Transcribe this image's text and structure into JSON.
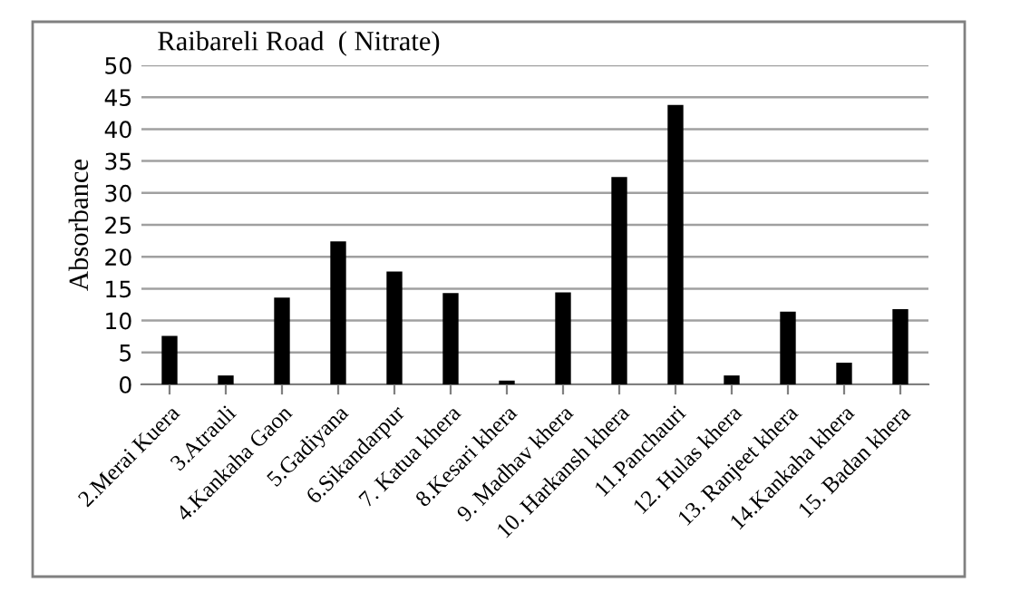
{
  "chart_data": {
    "type": "bar",
    "title": "Raibareli Road  ( Nitrate)",
    "ylabel": "Absorbance",
    "categories": [
      "2.Merai Kuera",
      "3.Atrauli",
      "4.Kankaha Gaon",
      "5.Gadiyana",
      "6.Sikandarpur",
      "7. Katua khera",
      "8.Kesari khera",
      "9. Madhav khera",
      "10. Harkansh khera",
      "11.Panchauri",
      "12. Hulas khera",
      "13. Ranjeet khera",
      "14.Kankaha khera",
      "15. Badan khera"
    ],
    "values": [
      7.6,
      1.4,
      13.6,
      22.4,
      17.7,
      14.3,
      0.6,
      14.4,
      32.5,
      43.8,
      1.4,
      11.4,
      3.4,
      11.8
    ],
    "color": "#000000",
    "ylim": [
      0,
      50
    ],
    "yticks": [
      0,
      5,
      10,
      15,
      20,
      25,
      30,
      35,
      40,
      45,
      50
    ],
    "grid": "y"
  }
}
